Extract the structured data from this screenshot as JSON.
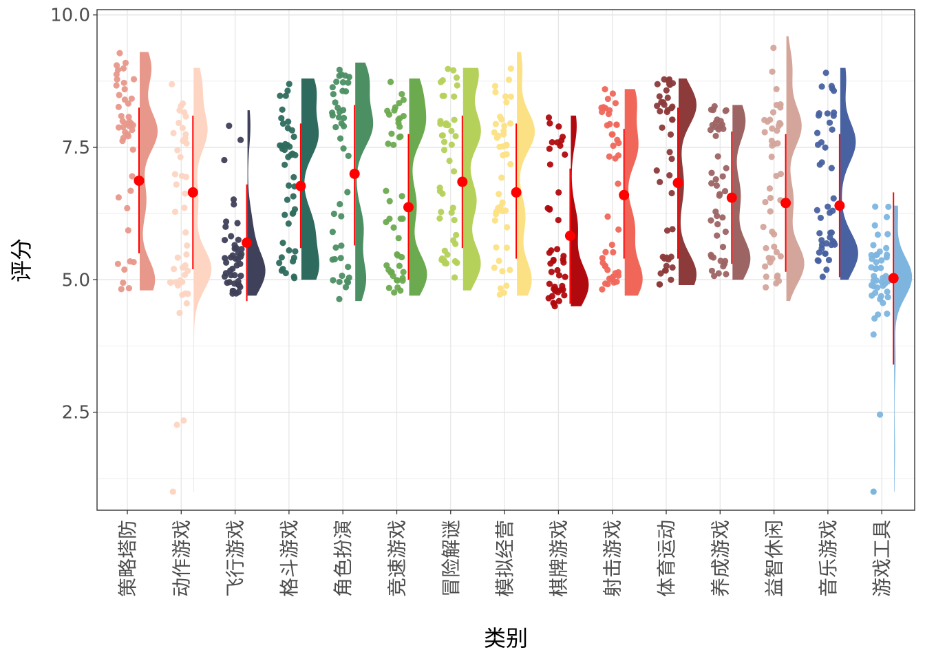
{
  "chart_data": {
    "type": "raincloud",
    "xlabel": "类别",
    "ylabel": "评分",
    "ylim": [
      0.65,
      10.1
    ],
    "yticks": [
      "2.5",
      "5.0",
      "7.5",
      "10.0"
    ],
    "grid": true,
    "legend": "none",
    "mean_color": "#FF0000",
    "categories": [
      "策略塔防",
      "动作游戏",
      "飞行游戏",
      "格斗游戏",
      "角色扮演",
      "竞速游戏",
      "冒险解谜",
      "模拟经营",
      "棋牌游戏",
      "射击游戏",
      "体育运动",
      "养成游戏",
      "益智休闲",
      "音乐游戏",
      "游戏工具"
    ],
    "series": [
      {
        "category": "策略塔防",
        "color": "#E8988A",
        "mean": 6.87,
        "sd_low": 5.5,
        "sd_high": 8.25,
        "min": 4.8,
        "max": 9.3,
        "modes": [
          [
            5.0,
            0.6
          ],
          [
            6.5,
            0.25
          ],
          [
            7.8,
            0.7
          ],
          [
            9.0,
            0.45
          ]
        ]
      },
      {
        "category": "动作游戏",
        "color": "#FDD5C2",
        "mean": 6.65,
        "sd_low": 5.2,
        "sd_high": 8.1,
        "min": 1.0,
        "max": 9.0,
        "modes": [
          [
            5.2,
            0.8
          ],
          [
            6.5,
            0.2
          ],
          [
            7.8,
            0.6
          ],
          [
            8.7,
            0.35
          ]
        ]
      },
      {
        "category": "飞行游戏",
        "color": "#3F4059",
        "mean": 5.7,
        "sd_low": 4.6,
        "sd_high": 6.8,
        "min": 4.7,
        "max": 8.2,
        "modes": [
          [
            5.15,
            1.0
          ],
          [
            6.0,
            0.25
          ],
          [
            7.9,
            0.15
          ]
        ]
      },
      {
        "category": "格斗游戏",
        "color": "#2E6B5E",
        "mean": 6.77,
        "sd_low": 5.6,
        "sd_high": 7.95,
        "min": 5.0,
        "max": 8.8,
        "modes": [
          [
            5.2,
            0.35
          ],
          [
            6.0,
            0.25
          ],
          [
            7.7,
            0.35
          ],
          [
            8.6,
            0.3
          ]
        ]
      },
      {
        "category": "角色扮演",
        "color": "#4B8F63",
        "mean": 7.0,
        "sd_low": 5.65,
        "sd_high": 8.3,
        "min": 4.6,
        "max": 9.1,
        "modes": [
          [
            5.0,
            0.4
          ],
          [
            6.0,
            0.3
          ],
          [
            7.9,
            0.65
          ],
          [
            8.8,
            0.5
          ]
        ]
      },
      {
        "category": "竞速游戏",
        "color": "#6BAA4F",
        "mean": 6.37,
        "sd_low": 5.0,
        "sd_high": 7.75,
        "min": 4.7,
        "max": 8.8,
        "modes": [
          [
            5.1,
            0.5
          ],
          [
            6.4,
            0.2
          ],
          [
            7.9,
            0.4
          ],
          [
            8.6,
            0.3
          ]
        ]
      },
      {
        "category": "冒险解谜",
        "color": "#B5D15A",
        "mean": 6.85,
        "sd_low": 5.6,
        "sd_high": 8.1,
        "min": 4.8,
        "max": 9.0,
        "modes": [
          [
            5.3,
            0.4
          ],
          [
            6.5,
            0.3
          ],
          [
            7.8,
            0.4
          ],
          [
            8.9,
            0.35
          ]
        ]
      },
      {
        "category": "模拟经营",
        "color": "#FCE184",
        "mean": 6.65,
        "sd_low": 5.4,
        "sd_high": 7.95,
        "min": 4.7,
        "max": 9.3,
        "modes": [
          [
            5.0,
            0.45
          ],
          [
            6.2,
            0.25
          ],
          [
            7.8,
            0.55
          ],
          [
            9.0,
            0.15
          ]
        ]
      },
      {
        "category": "棋牌游戏",
        "color": "#B0090E",
        "mean": 5.83,
        "sd_low": 4.55,
        "sd_high": 7.1,
        "min": 4.5,
        "max": 8.1,
        "modes": [
          [
            4.9,
            0.8
          ],
          [
            6.0,
            0.3
          ],
          [
            7.9,
            0.25
          ]
        ]
      },
      {
        "category": "射击游戏",
        "color": "#F0675A",
        "mean": 6.6,
        "sd_low": 5.4,
        "sd_high": 7.85,
        "min": 4.7,
        "max": 8.6,
        "modes": [
          [
            5.0,
            0.55
          ],
          [
            6.0,
            0.3
          ],
          [
            7.5,
            0.4
          ],
          [
            8.4,
            0.35
          ]
        ]
      },
      {
        "category": "体育运动",
        "color": "#8C3A3A",
        "mean": 6.83,
        "sd_low": 5.4,
        "sd_high": 8.25,
        "min": 4.9,
        "max": 8.8,
        "modes": [
          [
            5.1,
            0.55
          ],
          [
            6.8,
            0.15
          ],
          [
            8.3,
            0.55
          ]
        ]
      },
      {
        "category": "养成游戏",
        "color": "#9C6463",
        "mean": 6.55,
        "sd_low": 5.3,
        "sd_high": 7.8,
        "min": 5.0,
        "max": 8.3,
        "modes": [
          [
            5.4,
            0.35
          ],
          [
            6.6,
            0.15
          ],
          [
            8.0,
            0.25
          ]
        ]
      },
      {
        "category": "益智休闲",
        "color": "#D4A59B",
        "mean": 6.45,
        "sd_low": 5.15,
        "sd_high": 7.75,
        "min": 4.6,
        "max": 9.6,
        "modes": [
          [
            5.3,
            0.65
          ],
          [
            6.5,
            0.25
          ],
          [
            7.9,
            0.55
          ],
          [
            9.0,
            0.2
          ]
        ]
      },
      {
        "category": "音乐游戏",
        "color": "#4861A0",
        "mean": 6.4,
        "sd_low": 5.05,
        "sd_high": 7.75,
        "min": 5.0,
        "max": 9.0,
        "modes": [
          [
            5.5,
            0.35
          ],
          [
            7.6,
            0.3
          ],
          [
            8.8,
            0.1
          ]
        ]
      },
      {
        "category": "游戏工具",
        "color": "#7DB5DF",
        "mean": 5.03,
        "sd_low": 3.4,
        "sd_high": 6.65,
        "min": 1.0,
        "max": 6.4,
        "modes": [
          [
            5.05,
            1.0
          ],
          [
            6.3,
            0.2
          ],
          [
            3.5,
            0.06
          ],
          [
            1.8,
            0.03
          ]
        ]
      }
    ]
  }
}
